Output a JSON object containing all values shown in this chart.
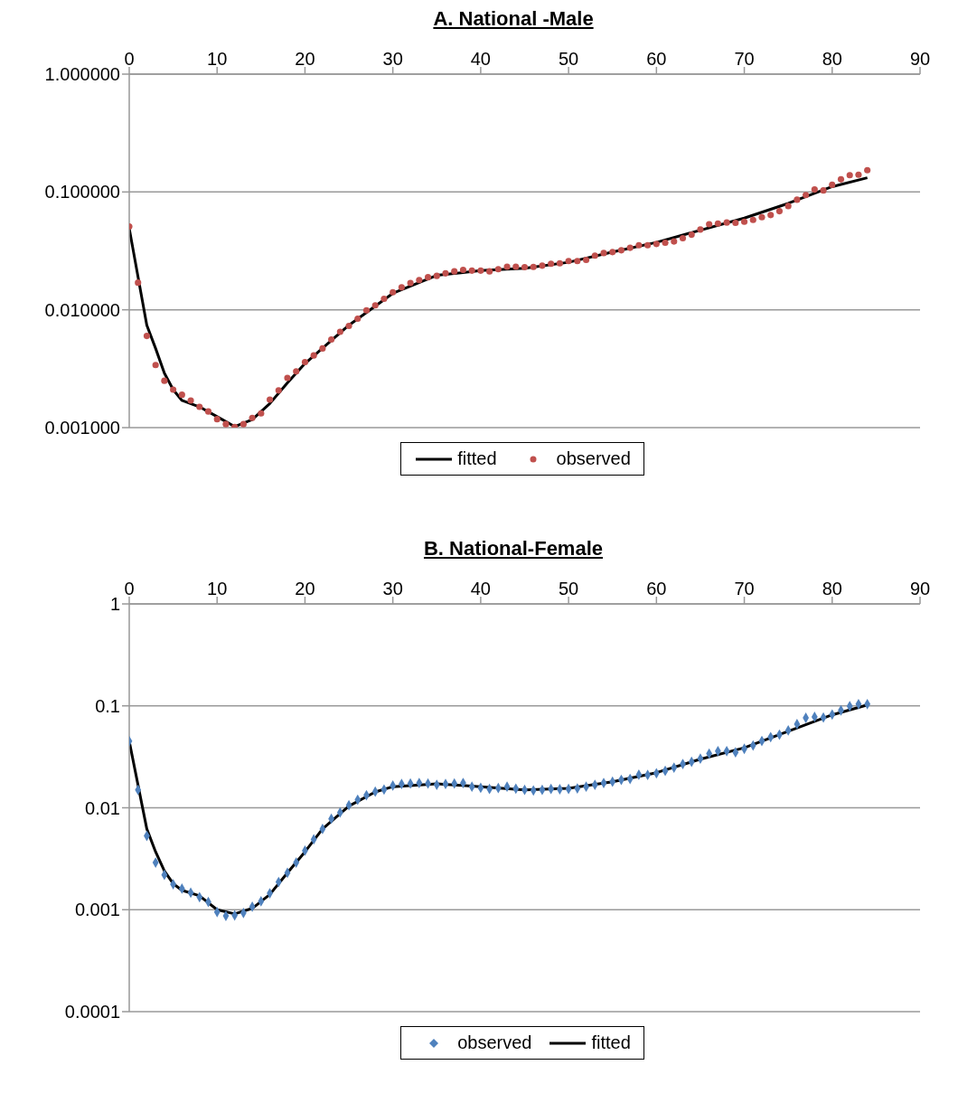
{
  "chart_data": [
    {
      "type": "line",
      "title": "A. National -Male",
      "xlim": [
        0,
        90
      ],
      "xticks": [
        0,
        10,
        20,
        30,
        40,
        50,
        60,
        70,
        80,
        90
      ],
      "log": "y",
      "ylim": [
        0.001,
        1
      ],
      "yticks": [
        {
          "value": 0.001,
          "label": "0.001000"
        },
        {
          "value": 0.01,
          "label": "0.010000"
        },
        {
          "value": 0.1,
          "label": "0.100000"
        },
        {
          "value": 1,
          "label": "1.000000"
        }
      ],
      "grid": "y",
      "legend": "bottom",
      "series": [
        {
          "name": "fitted",
          "color": "#000000",
          "marker": "none",
          "line_style": "solid",
          "x": [
            0,
            2,
            3,
            4,
            5,
            6,
            8,
            10,
            12,
            14,
            16,
            18,
            20,
            25,
            30,
            35,
            40,
            45,
            50,
            55,
            60,
            65,
            70,
            75,
            80,
            84
          ],
          "values": [
            0.049,
            0.0074,
            0.0047,
            0.0029,
            0.0021,
            0.0017,
            0.0015,
            0.00124,
            0.00102,
            0.00117,
            0.0016,
            0.0024,
            0.0035,
            0.0074,
            0.0138,
            0.0196,
            0.0215,
            0.0225,
            0.0253,
            0.0309,
            0.0373,
            0.0474,
            0.06,
            0.08,
            0.111,
            0.132
          ]
        },
        {
          "name": "observed",
          "type": "scatter",
          "color": "#c0504d",
          "marker": "circle",
          "x": [
            0,
            1,
            2,
            3,
            4,
            5,
            6,
            7,
            8,
            9,
            10,
            11,
            12,
            13,
            14,
            15,
            16,
            17,
            18,
            19,
            20,
            21,
            22,
            23,
            24,
            25,
            26,
            27,
            28,
            29,
            30,
            31,
            32,
            33,
            34,
            35,
            36,
            37,
            38,
            39,
            40,
            41,
            42,
            43,
            44,
            45,
            46,
            47,
            48,
            49,
            50,
            51,
            52,
            53,
            54,
            55,
            56,
            57,
            58,
            59,
            60,
            61,
            62,
            63,
            64,
            65,
            66,
            67,
            68,
            69,
            70,
            71,
            72,
            73,
            74,
            75,
            76,
            77,
            78,
            79,
            80,
            81,
            82,
            83,
            84
          ],
          "values": [
            0.051,
            0.017,
            0.006,
            0.0034,
            0.0025,
            0.0021,
            0.0019,
            0.0017,
            0.0015,
            0.00137,
            0.00118,
            0.00107,
            0.00101,
            0.00107,
            0.00121,
            0.00132,
            0.00173,
            0.00207,
            0.00264,
            0.003,
            0.0036,
            0.0041,
            0.0047,
            0.0056,
            0.0065,
            0.0073,
            0.0084,
            0.0099,
            0.0109,
            0.0124,
            0.0141,
            0.0155,
            0.0169,
            0.0179,
            0.0189,
            0.0194,
            0.0204,
            0.0212,
            0.0218,
            0.0215,
            0.0215,
            0.0212,
            0.0221,
            0.0232,
            0.0232,
            0.023,
            0.0231,
            0.0237,
            0.0246,
            0.0248,
            0.0259,
            0.0259,
            0.0265,
            0.0288,
            0.0303,
            0.0309,
            0.032,
            0.0336,
            0.0353,
            0.0353,
            0.0362,
            0.0371,
            0.038,
            0.0405,
            0.0434,
            0.048,
            0.0533,
            0.054,
            0.055,
            0.0547,
            0.0559,
            0.0579,
            0.0611,
            0.0637,
            0.0687,
            0.0759,
            0.0859,
            0.0942,
            0.105,
            0.103,
            0.115,
            0.128,
            0.139,
            0.14,
            0.153
          ]
        }
      ]
    },
    {
      "type": "line",
      "title": "B. National-Female",
      "xlim": [
        0,
        90
      ],
      "xticks": [
        0,
        10,
        20,
        30,
        40,
        50,
        60,
        70,
        80,
        90
      ],
      "log": "y",
      "ylim": [
        0.0001,
        1
      ],
      "yticks": [
        0.0001,
        0.001,
        0.01,
        0.1,
        1
      ],
      "grid": "y",
      "legend": "bottom",
      "series": [
        {
          "name": "observed",
          "type": "scatter",
          "color": "#4f81bd",
          "marker": "diamond",
          "x": [
            0,
            1,
            2,
            3,
            4,
            5,
            6,
            7,
            8,
            9,
            10,
            11,
            12,
            13,
            14,
            15,
            16,
            17,
            18,
            19,
            20,
            21,
            22,
            23,
            24,
            25,
            26,
            27,
            28,
            29,
            30,
            31,
            32,
            33,
            34,
            35,
            36,
            37,
            38,
            39,
            40,
            41,
            42,
            43,
            44,
            45,
            46,
            47,
            48,
            49,
            50,
            51,
            52,
            53,
            54,
            55,
            56,
            57,
            58,
            59,
            60,
            61,
            62,
            63,
            64,
            65,
            66,
            67,
            68,
            69,
            70,
            71,
            72,
            73,
            74,
            75,
            76,
            77,
            78,
            79,
            80,
            81,
            82,
            83,
            84
          ],
          "values": [
            0.045,
            0.015,
            0.0053,
            0.0029,
            0.0022,
            0.00178,
            0.00161,
            0.00147,
            0.00133,
            0.00119,
            0.00095,
            0.00087,
            0.00088,
            0.00093,
            0.00107,
            0.00121,
            0.00145,
            0.00187,
            0.0023,
            0.0029,
            0.0038,
            0.0049,
            0.0062,
            0.0078,
            0.009,
            0.0106,
            0.012,
            0.0133,
            0.0144,
            0.0151,
            0.0165,
            0.0171,
            0.0173,
            0.0175,
            0.0173,
            0.0168,
            0.0171,
            0.0173,
            0.0175,
            0.0161,
            0.0157,
            0.0153,
            0.0156,
            0.0161,
            0.0154,
            0.015,
            0.0148,
            0.015,
            0.0153,
            0.0152,
            0.0153,
            0.0155,
            0.0161,
            0.0168,
            0.0175,
            0.018,
            0.0188,
            0.0192,
            0.0211,
            0.021,
            0.0218,
            0.023,
            0.0248,
            0.0269,
            0.0282,
            0.0303,
            0.034,
            0.036,
            0.036,
            0.035,
            0.0379,
            0.0409,
            0.0453,
            0.0494,
            0.0522,
            0.0574,
            0.0662,
            0.0763,
            0.0779,
            0.0768,
            0.0822,
            0.0903,
            0.0993,
            0.104,
            0.104
          ]
        },
        {
          "name": "fitted",
          "color": "#000000",
          "marker": "none",
          "line_style": "solid",
          "x": [
            0,
            2,
            3,
            4,
            5,
            6,
            8,
            10,
            12,
            14,
            16,
            18,
            20,
            22,
            25,
            28,
            30,
            35,
            40,
            45,
            50,
            55,
            60,
            65,
            70,
            75,
            80,
            84
          ],
          "values": [
            0.045,
            0.0062,
            0.0037,
            0.0024,
            0.0018,
            0.00155,
            0.00137,
            0.001,
            0.00091,
            0.00103,
            0.00141,
            0.0023,
            0.0037,
            0.0062,
            0.0104,
            0.0143,
            0.0161,
            0.0172,
            0.0161,
            0.015,
            0.0155,
            0.018,
            0.0221,
            0.03,
            0.0388,
            0.0562,
            0.0816,
            0.102
          ]
        }
      ]
    }
  ]
}
